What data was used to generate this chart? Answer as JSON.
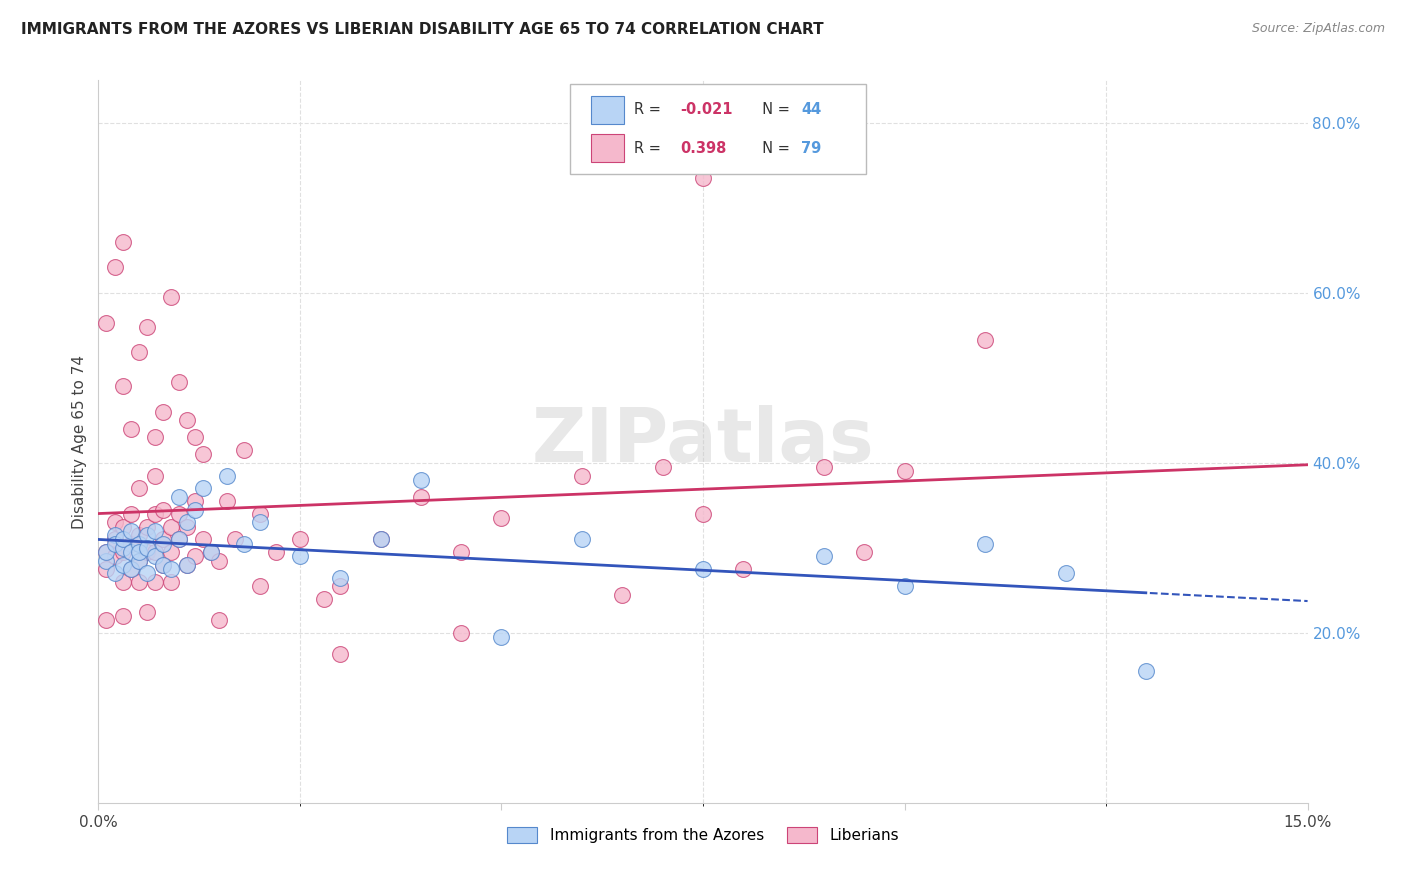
{
  "title": "IMMIGRANTS FROM THE AZORES VS LIBERIAN DISABILITY AGE 65 TO 74 CORRELATION CHART",
  "source": "Source: ZipAtlas.com",
  "ylabel": "Disability Age 65 to 74",
  "xlim": [
    0.0,
    0.15
  ],
  "ylim": [
    0.0,
    0.85
  ],
  "yticks": [
    0.2,
    0.4,
    0.6,
    0.8
  ],
  "ytick_labels": [
    "20.0%",
    "40.0%",
    "60.0%",
    "80.0%"
  ],
  "grid_color": "#e0e0e0",
  "background_color": "#ffffff",
  "azores_fill_color": "#b8d4f5",
  "azores_edge_color": "#5588cc",
  "liberian_fill_color": "#f5b8cc",
  "liberian_edge_color": "#cc4477",
  "azores_line_color": "#3355bb",
  "liberian_line_color": "#cc3366",
  "azores_x": [
    0.001,
    0.001,
    0.002,
    0.002,
    0.002,
    0.003,
    0.003,
    0.003,
    0.004,
    0.004,
    0.004,
    0.005,
    0.005,
    0.005,
    0.006,
    0.006,
    0.006,
    0.007,
    0.007,
    0.008,
    0.008,
    0.009,
    0.01,
    0.01,
    0.011,
    0.011,
    0.012,
    0.013,
    0.014,
    0.016,
    0.018,
    0.02,
    0.025,
    0.03,
    0.035,
    0.04,
    0.05,
    0.06,
    0.075,
    0.09,
    0.1,
    0.11,
    0.12,
    0.13
  ],
  "azores_y": [
    0.285,
    0.295,
    0.315,
    0.27,
    0.305,
    0.3,
    0.28,
    0.31,
    0.295,
    0.32,
    0.275,
    0.305,
    0.285,
    0.295,
    0.315,
    0.27,
    0.3,
    0.29,
    0.32,
    0.28,
    0.305,
    0.275,
    0.31,
    0.36,
    0.33,
    0.28,
    0.345,
    0.37,
    0.295,
    0.385,
    0.305,
    0.33,
    0.29,
    0.265,
    0.31,
    0.38,
    0.195,
    0.31,
    0.275,
    0.29,
    0.255,
    0.305,
    0.27,
    0.155
  ],
  "liberian_x": [
    0.001,
    0.001,
    0.001,
    0.002,
    0.002,
    0.002,
    0.003,
    0.003,
    0.003,
    0.003,
    0.004,
    0.004,
    0.004,
    0.005,
    0.005,
    0.005,
    0.005,
    0.006,
    0.006,
    0.006,
    0.007,
    0.007,
    0.007,
    0.007,
    0.008,
    0.008,
    0.008,
    0.009,
    0.009,
    0.009,
    0.01,
    0.01,
    0.011,
    0.011,
    0.012,
    0.012,
    0.013,
    0.013,
    0.014,
    0.015,
    0.016,
    0.017,
    0.018,
    0.02,
    0.022,
    0.025,
    0.028,
    0.03,
    0.035,
    0.04,
    0.045,
    0.05,
    0.06,
    0.065,
    0.07,
    0.075,
    0.08,
    0.09,
    0.095,
    0.1,
    0.001,
    0.002,
    0.003,
    0.003,
    0.004,
    0.005,
    0.006,
    0.007,
    0.008,
    0.009,
    0.01,
    0.011,
    0.012,
    0.015,
    0.02,
    0.03,
    0.045,
    0.075,
    0.11
  ],
  "liberian_y": [
    0.275,
    0.295,
    0.215,
    0.31,
    0.29,
    0.33,
    0.26,
    0.295,
    0.325,
    0.22,
    0.275,
    0.305,
    0.34,
    0.285,
    0.315,
    0.26,
    0.37,
    0.295,
    0.325,
    0.225,
    0.34,
    0.295,
    0.26,
    0.385,
    0.31,
    0.28,
    0.345,
    0.26,
    0.295,
    0.325,
    0.31,
    0.34,
    0.28,
    0.325,
    0.29,
    0.355,
    0.31,
    0.41,
    0.295,
    0.285,
    0.355,
    0.31,
    0.415,
    0.34,
    0.295,
    0.31,
    0.24,
    0.255,
    0.31,
    0.36,
    0.295,
    0.335,
    0.385,
    0.245,
    0.395,
    0.34,
    0.275,
    0.395,
    0.295,
    0.39,
    0.565,
    0.63,
    0.66,
    0.49,
    0.44,
    0.53,
    0.56,
    0.43,
    0.46,
    0.595,
    0.495,
    0.45,
    0.43,
    0.215,
    0.255,
    0.175,
    0.2,
    0.735,
    0.545
  ]
}
